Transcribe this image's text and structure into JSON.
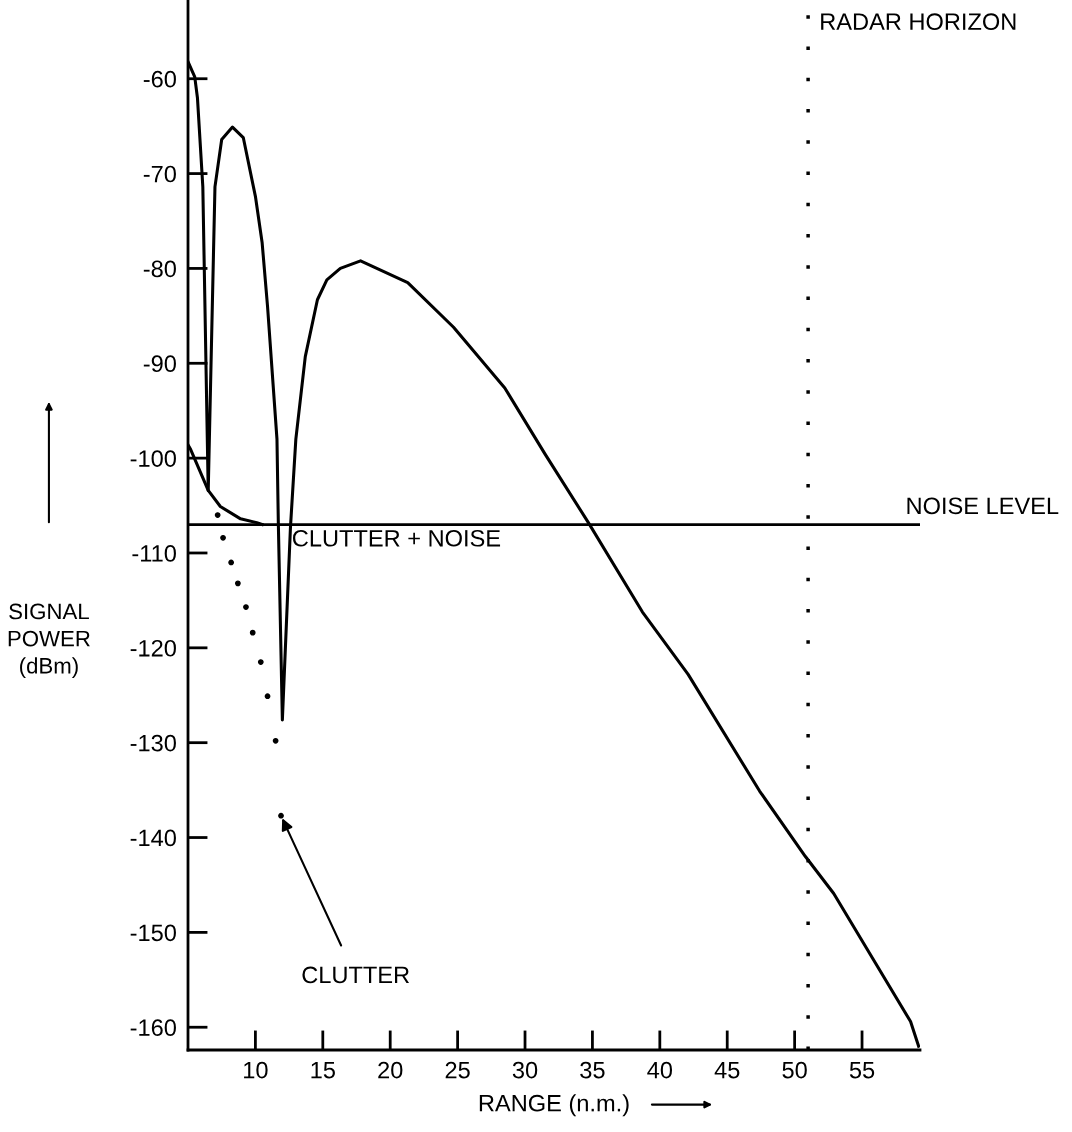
{
  "chart_data": {
    "type": "line",
    "xlabel": "RANGE (n.m.)",
    "ylabel": "SIGNAL\nPOWER\n(dBm)",
    "xlim": [
      5,
      59.3
    ],
    "ylim": [
      -162.4,
      -51.7
    ],
    "xticks": [
      10,
      15,
      20,
      25,
      30,
      35,
      40,
      45,
      50,
      55
    ],
    "yticks": [
      -60,
      -70,
      -80,
      -90,
      -100,
      -110,
      -120,
      -130,
      -140,
      -150,
      -160
    ],
    "grid": false,
    "marker": "none",
    "line_style": "solid",
    "series": [
      {
        "color": "#000000",
        "x": [
          5,
          5.5,
          5.7,
          6.1,
          6.5,
          7.0,
          7.5,
          8.3,
          9.1,
          10.0,
          10.5,
          10.9,
          11.6,
          11.7,
          12.0,
          12.6,
          13.0,
          13.7,
          14.6,
          15.3,
          16.3,
          17.8,
          21.3,
          24.7,
          28.5,
          31.5,
          34.7,
          38.7,
          42.1,
          47.4,
          50.8,
          52.9,
          58.6,
          59.2
        ],
        "values": [
          -58.2,
          -59.8,
          -62,
          -71.4,
          -103.4,
          -71.4,
          -66.4,
          -65.1,
          -66.2,
          -72.4,
          -77.3,
          -84,
          -98,
          -106.8,
          -127.6,
          -107.3,
          -98,
          -89.3,
          -83.3,
          -81.2,
          -80,
          -79.2,
          -81.5,
          -86.2,
          -92.6,
          -99.6,
          -106.8,
          -116.2,
          -122.8,
          -135.1,
          -142,
          -145.9,
          -159.4,
          -162
        ]
      },
      {
        "color": "#000000",
        "x": [
          5,
          5.2,
          6.5,
          7.4,
          8.9,
          10.1,
          10.5
        ],
        "values": [
          -98.6,
          -99.1,
          -103.4,
          -105.1,
          -106.4,
          -106.8,
          -107
        ]
      },
      {
        "type": "scatter",
        "color": "#000000",
        "x": [
          7.2,
          7.6,
          8.2,
          8.7,
          9.3,
          9.8,
          10.4,
          10.9,
          11.5,
          11.9
        ],
        "values": [
          -106,
          -108.4,
          -111,
          -113.2,
          -115.7,
          -118.4,
          -121.5,
          -125.1,
          -129.8,
          -137.7
        ]
      }
    ],
    "ref_lines": [
      {
        "axis": "y",
        "value": -107,
        "label": "NOISE LEVEL",
        "color": "#000000",
        "line_style": "solid"
      },
      {
        "axis": "x",
        "value": 51,
        "label": "RADAR HORIZON",
        "color": "#000000",
        "line_style": "dotted"
      }
    ],
    "annotations": [
      {
        "text": "CLUTTER + NOISE",
        "x": 12.7,
        "y": -107.5
      },
      {
        "text": "CLUTTER",
        "x": 11.9,
        "y": -137.7
      }
    ]
  }
}
